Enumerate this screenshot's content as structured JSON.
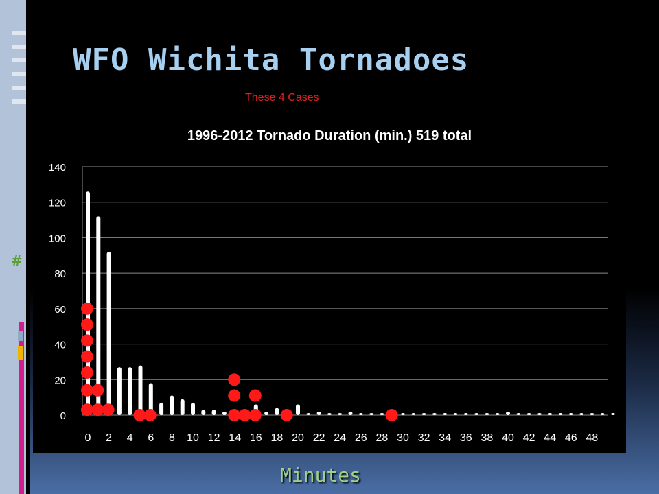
{
  "slide": {
    "title": "WFO Wichita Tornadoes",
    "cases_label": "These 4 Cases",
    "side_mark": "#",
    "bottom_label": "Minutes"
  },
  "colors": {
    "title": "#a7cff0",
    "cases": "#e02020",
    "bars": "#ffffff",
    "dots": "#ff1a1a",
    "grid": "#8a8a8a",
    "bottom_label": "#9fd08a"
  },
  "chart_data": {
    "type": "bar",
    "title": "1996-2012 Tornado Duration (min.) 519 total",
    "xlabel": "Minutes",
    "ylabel": "",
    "ylim": [
      0,
      140
    ],
    "yticks": [
      0,
      20,
      40,
      60,
      80,
      100,
      120,
      140
    ],
    "xticks": [
      0,
      2,
      4,
      6,
      8,
      10,
      12,
      14,
      16,
      18,
      20,
      22,
      24,
      26,
      28,
      30,
      32,
      34,
      36,
      38,
      40,
      42,
      44,
      46,
      48
    ],
    "grid": true,
    "x": [
      0,
      1,
      2,
      3,
      4,
      5,
      6,
      7,
      8,
      9,
      10,
      11,
      12,
      13,
      14,
      15,
      16,
      17,
      18,
      19,
      20,
      21,
      22,
      23,
      24,
      25,
      26,
      27,
      28,
      29,
      30,
      31,
      32,
      33,
      34,
      35,
      36,
      37,
      38,
      39,
      40,
      41,
      42,
      43,
      44,
      45,
      46,
      47,
      48,
      49,
      50
    ],
    "values": [
      126,
      112,
      92,
      27,
      27,
      28,
      18,
      7,
      11,
      9,
      7,
      3,
      3,
      2,
      3,
      3,
      6,
      2,
      4,
      2,
      6,
      1,
      2,
      1,
      1,
      2,
      1,
      1,
      1,
      1,
      1,
      0,
      0,
      0,
      0,
      0,
      0,
      0,
      0,
      0,
      2,
      0,
      0,
      0,
      0,
      0,
      0,
      0,
      0,
      0,
      1
    ],
    "highlighted_cases": {
      "name": "These 4 Cases",
      "points": [
        {
          "x": 0,
          "y": 3
        },
        {
          "x": 0,
          "y": 14
        },
        {
          "x": 0,
          "y": 24
        },
        {
          "x": 0,
          "y": 33
        },
        {
          "x": 0,
          "y": 42
        },
        {
          "x": 0,
          "y": 51
        },
        {
          "x": 0,
          "y": 60
        },
        {
          "x": 1,
          "y": 3
        },
        {
          "x": 1,
          "y": 14
        },
        {
          "x": 2,
          "y": 3
        },
        {
          "x": 5,
          "y": 0
        },
        {
          "x": 6,
          "y": 0
        },
        {
          "x": 14,
          "y": 0
        },
        {
          "x": 14,
          "y": 11
        },
        {
          "x": 14,
          "y": 20
        },
        {
          "x": 15,
          "y": 0
        },
        {
          "x": 16,
          "y": 0
        },
        {
          "x": 16,
          "y": 11
        },
        {
          "x": 19,
          "y": 0
        },
        {
          "x": 29,
          "y": 0
        }
      ]
    }
  }
}
